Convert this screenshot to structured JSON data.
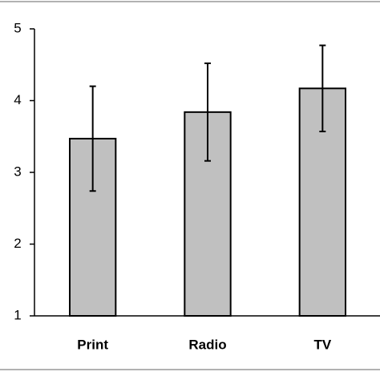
{
  "chart_data": {
    "type": "bar",
    "categories": [
      "Print",
      "Radio",
      "TV"
    ],
    "values": [
      3.47,
      3.84,
      4.17
    ],
    "errors": [
      0.73,
      0.68,
      0.6
    ],
    "color": "#c0c0c0",
    "ylim": [
      1,
      5
    ],
    "yticks": [
      1,
      2,
      3,
      4,
      5
    ],
    "grid": false
  }
}
